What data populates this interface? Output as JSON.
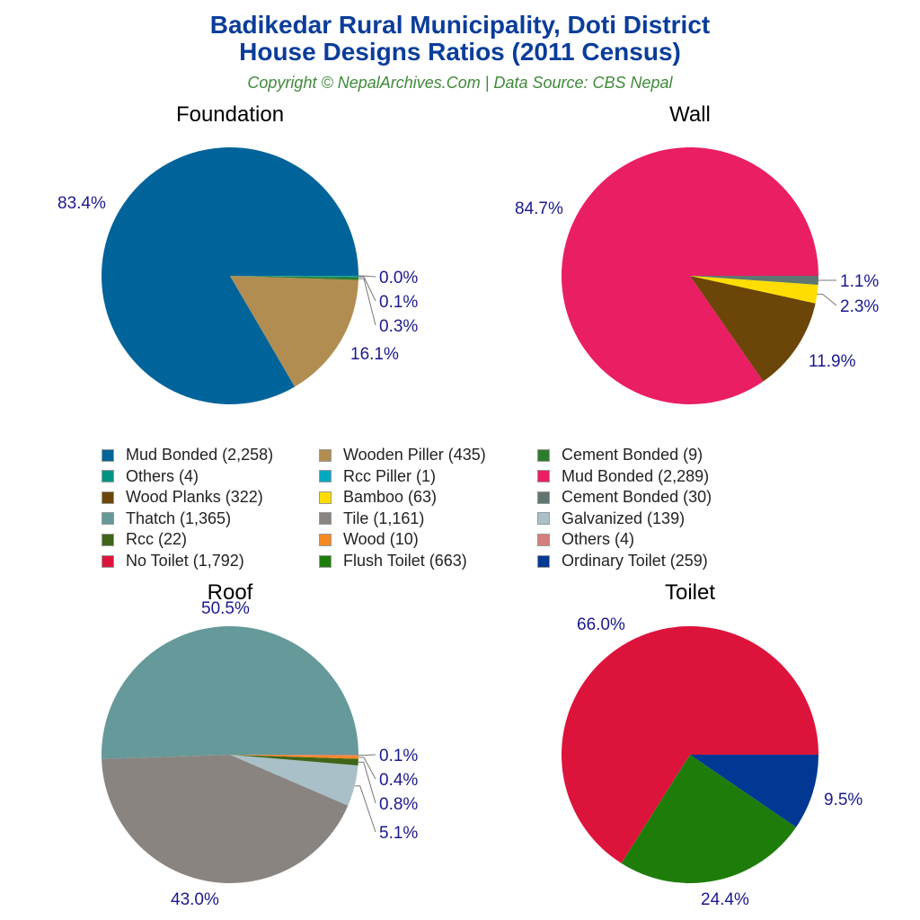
{
  "title_line1": "Badikedar Rural Municipality, Doti District",
  "title_line2": "House Designs Ratios (2011 Census)",
  "subtitle": "Copyright © NepalArchives.Com | Data Source: CBS Nepal",
  "chart_data": [
    {
      "type": "pie",
      "title": "Foundation",
      "start": "3 o'clock, counter-clockwise",
      "slices": [
        {
          "name": "Mud Bonded",
          "value": 2258,
          "label": "83.4%",
          "color": "#00649a"
        },
        {
          "name": "Wooden Piller",
          "value": 435,
          "label": "16.1%",
          "color": "#b18d52"
        },
        {
          "name": "Cement Bonded",
          "value": 9,
          "label": "0.3%",
          "color": "#2e7d2e"
        },
        {
          "name": "Others",
          "value": 4,
          "label": "0.1%",
          "color": "#009485"
        },
        {
          "name": "Rcc Piller",
          "value": 1,
          "label": "0.0%",
          "color": "#00a9c0"
        }
      ]
    },
    {
      "type": "pie",
      "title": "Wall",
      "slices": [
        {
          "name": "Mud Bonded",
          "value": 2289,
          "label": "84.7%",
          "color": "#e91e63"
        },
        {
          "name": "Wood Planks",
          "value": 322,
          "label": "11.9%",
          "color": "#6b4608"
        },
        {
          "name": "Bamboo",
          "value": 63,
          "label": "2.3%",
          "color": "#ffdd00"
        },
        {
          "name": "Cement Bonded",
          "value": 30,
          "label": "1.1%",
          "color": "#5f7571"
        }
      ]
    },
    {
      "type": "pie",
      "title": "Roof",
      "slices": [
        {
          "name": "Thatch",
          "value": 1365,
          "label": "50.5%",
          "color": "#669999"
        },
        {
          "name": "Tile",
          "value": 1161,
          "label": "43.0%",
          "color": "#8a8480"
        },
        {
          "name": "Galvanized",
          "value": 139,
          "label": "5.1%",
          "color": "#a9c0c8"
        },
        {
          "name": "Rcc",
          "value": 22,
          "label": "0.8%",
          "color": "#3f6519"
        },
        {
          "name": "Wood",
          "value": 10,
          "label": "0.4%",
          "color": "#f58a23"
        },
        {
          "name": "Others",
          "value": 4,
          "label": "0.1%",
          "color": "#d47f7f"
        }
      ]
    },
    {
      "type": "pie",
      "title": "Toilet",
      "slices": [
        {
          "name": "No Toilet",
          "value": 1792,
          "label": "66.0%",
          "color": "#dc143c"
        },
        {
          "name": "Flush Toilet",
          "value": 663,
          "label": "24.4%",
          "color": "#1e7d0a"
        },
        {
          "name": "Ordinary Toilet",
          "value": 259,
          "label": "9.5%",
          "color": "#003893"
        }
      ]
    }
  ],
  "legend": [
    {
      "label": "Mud Bonded (2,258)",
      "color": "#00649a"
    },
    {
      "label": "Wooden Piller (435)",
      "color": "#b18d52"
    },
    {
      "label": "Cement Bonded (9)",
      "color": "#2e7d2e"
    },
    {
      "label": "Others (4)",
      "color": "#009485"
    },
    {
      "label": "Rcc Piller (1)",
      "color": "#00a9c0"
    },
    {
      "label": "Mud Bonded (2,289)",
      "color": "#e91e63"
    },
    {
      "label": "Wood Planks (322)",
      "color": "#6b4608"
    },
    {
      "label": "Bamboo (63)",
      "color": "#ffdd00"
    },
    {
      "label": "Cement Bonded (30)",
      "color": "#5f7571"
    },
    {
      "label": "Thatch (1,365)",
      "color": "#669999"
    },
    {
      "label": "Tile (1,161)",
      "color": "#8a8480"
    },
    {
      "label": "Galvanized (139)",
      "color": "#a9c0c8"
    },
    {
      "label": "Rcc (22)",
      "color": "#3f6519"
    },
    {
      "label": "Wood (10)",
      "color": "#f58a23"
    },
    {
      "label": "Others (4)",
      "color": "#d47f7f"
    },
    {
      "label": "No Toilet (1,792)",
      "color": "#dc143c"
    },
    {
      "label": "Flush Toilet (663)",
      "color": "#1e7d0a"
    },
    {
      "label": "Ordinary Toilet (259)",
      "color": "#003893"
    }
  ]
}
